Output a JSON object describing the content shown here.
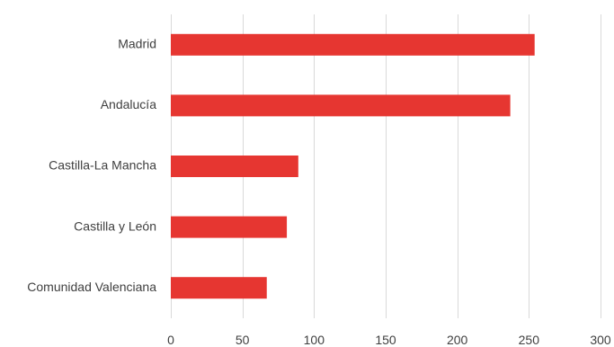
{
  "chart_data": {
    "type": "bar",
    "orientation": "horizontal",
    "title": "",
    "xlabel": "",
    "ylabel": "",
    "categories": [
      "Madrid",
      "Andalucía",
      "Castilla-La Mancha",
      "Castilla y León",
      "Comunidad Valenciana"
    ],
    "values": [
      254,
      237,
      89,
      81,
      67
    ],
    "xlim": [
      0,
      300
    ],
    "ticks": [
      "0",
      "50",
      "100",
      "150",
      "200",
      "250",
      "300"
    ],
    "tick_values": [
      0,
      50,
      100,
      150,
      200,
      250,
      300
    ],
    "grid": true,
    "legend": "none",
    "bar_color": "#e63631",
    "grid_color": "#d9d9d9",
    "text_color": "#404040"
  }
}
